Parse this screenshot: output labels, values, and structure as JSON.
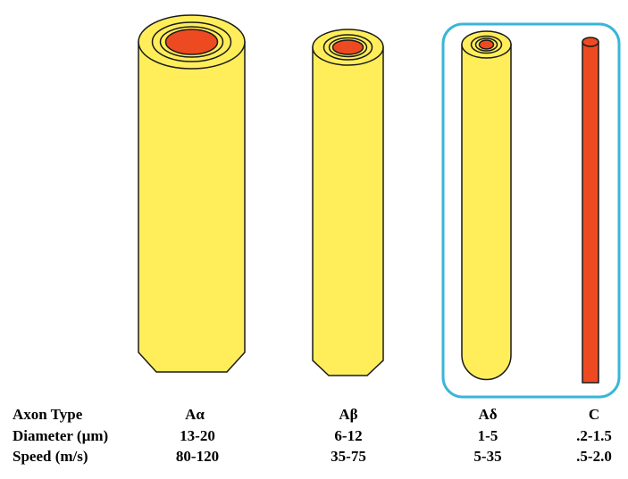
{
  "colors": {
    "myelin": "#ffee5a",
    "axon": "#ee4a22",
    "outline": "#1a1a1a",
    "highlight_box": "#39b6d8",
    "background": "#ffffff"
  },
  "axon_types": [
    {
      "name": "Aα",
      "diameter": "13-20",
      "speed": "80-120",
      "myelinated": true
    },
    {
      "name": "Aβ",
      "diameter": "6-12",
      "speed": "35-75",
      "myelinated": true
    },
    {
      "name": "Aδ",
      "diameter": "1-5",
      "speed": "5-35",
      "myelinated": true
    },
    {
      "name": "C",
      "diameter": ".2-1.5",
      "speed": ".5-2.0",
      "myelinated": false
    }
  ],
  "table": {
    "header_axon_type": "Axon Type",
    "header_diameter": "Diameter  (µm)",
    "header_speed": "Speed (m/s)"
  },
  "highlighted_types": [
    "Aδ",
    "C"
  ]
}
